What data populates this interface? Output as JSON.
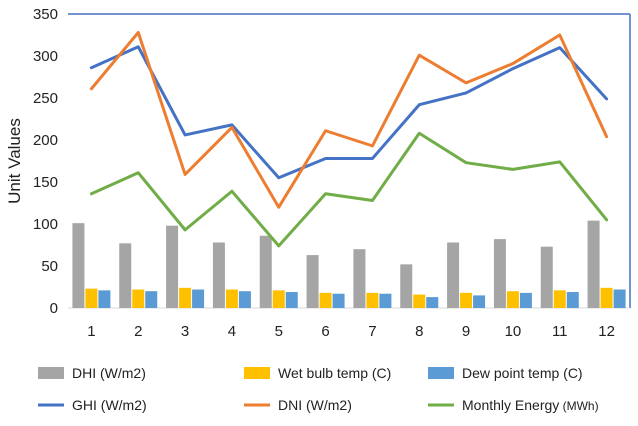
{
  "chart_data": {
    "type": "bar",
    "ylabel": "Unit Values",
    "xlabel": "",
    "ylim": [
      0,
      350
    ],
    "yticks": [
      0,
      50,
      100,
      150,
      200,
      250,
      300,
      350
    ],
    "categories": [
      "1",
      "2",
      "3",
      "4",
      "5",
      "6",
      "7",
      "8",
      "9",
      "10",
      "11",
      "12"
    ],
    "bar_series": [
      {
        "name": "DHI (W/m2)",
        "color": "#a5a5a5",
        "values": [
          101,
          77,
          98,
          78,
          86,
          63,
          70,
          52,
          78,
          82,
          73,
          104
        ]
      },
      {
        "name": "Wet bulb temp (C)",
        "color": "#ffc000",
        "values": [
          23,
          22,
          24,
          22,
          21,
          18,
          18,
          16,
          18,
          20,
          21,
          24
        ]
      },
      {
        "name": "Dew point temp (C)",
        "color": "#5b9bd5",
        "values": [
          21,
          20,
          22,
          20,
          19,
          17,
          17,
          13,
          15,
          18,
          19,
          22
        ]
      }
    ],
    "line_series": [
      {
        "name": "GHI (W/m2)",
        "color": "#4472c4",
        "values": [
          286,
          311,
          206,
          218,
          155,
          178,
          178,
          242,
          256,
          285,
          310,
          249
        ]
      },
      {
        "name": "DNI (W/m2)",
        "color": "#ed7d31",
        "values": [
          261,
          328,
          159,
          215,
          120,
          211,
          193,
          301,
          268,
          291,
          325,
          204
        ]
      },
      {
        "name": "Monthly Energy",
        "unit": "(MWh)",
        "color": "#70ad47",
        "values": [
          136,
          161,
          93,
          139,
          74,
          136,
          128,
          208,
          173,
          165,
          174,
          105
        ]
      }
    ],
    "legend_placement": "bottom",
    "grid": false
  }
}
